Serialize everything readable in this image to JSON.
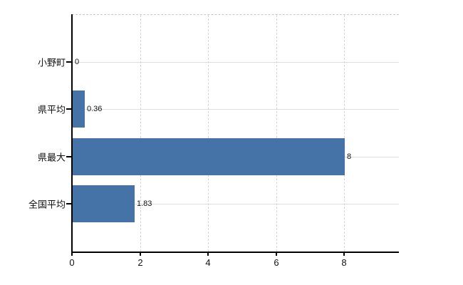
{
  "chart_data": {
    "type": "bar",
    "orientation": "horizontal",
    "categories": [
      "小野町",
      "県平均",
      "県最大",
      "全国平均"
    ],
    "values": [
      0,
      0.36,
      8,
      1.83
    ],
    "value_labels": [
      "0",
      "0.36",
      "8",
      "1.83"
    ],
    "x_ticks": [
      0,
      2,
      4,
      6,
      8
    ],
    "x_tick_labels": [
      "0",
      "2",
      "4",
      "6",
      "8"
    ],
    "xlim": [
      0,
      9.6
    ],
    "grid": true,
    "legend_visible": false,
    "colors": {
      "bar": "#4572a7",
      "h_gridline": "#d9e0d9",
      "v_gridline": "#d4d4d8",
      "plot_border": "#c9c9cd",
      "axis": "#000000",
      "text": "#111111",
      "background": "#ffffff"
    }
  }
}
